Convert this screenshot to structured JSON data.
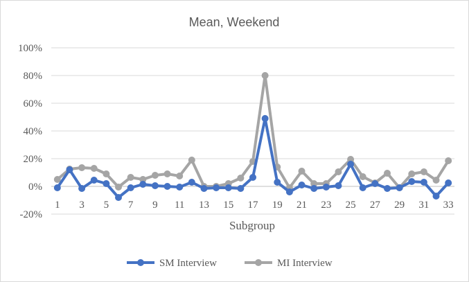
{
  "chart_data": {
    "type": "line",
    "title": "Mean, Weekend",
    "xlabel": "Subgroup",
    "ylabel": "",
    "ylim": [
      -0.2,
      1.0
    ],
    "y_ticks": [
      -0.2,
      0,
      0.2,
      0.4,
      0.6,
      0.8,
      1.0
    ],
    "y_tick_labels": [
      "-20%",
      "0%",
      "20%",
      "40%",
      "60%",
      "80%",
      "100%"
    ],
    "x": [
      1,
      2,
      3,
      4,
      5,
      6,
      7,
      8,
      9,
      10,
      11,
      12,
      13,
      14,
      15,
      16,
      17,
      18,
      19,
      20,
      21,
      22,
      23,
      24,
      25,
      26,
      27,
      28,
      29,
      30,
      31,
      32,
      33
    ],
    "x_tick_labels": [
      "1",
      "3",
      "5",
      "7",
      "9",
      "11",
      "13",
      "15",
      "17",
      "19",
      "21",
      "23",
      "25",
      "27",
      "29",
      "31",
      "33"
    ],
    "grid": true,
    "legend_position": "bottom",
    "series": [
      {
        "name": "SM Interview",
        "color": "#4472c4",
        "values": [
          -0.01,
          0.12,
          -0.015,
          0.045,
          0.02,
          -0.08,
          -0.01,
          0.015,
          0.005,
          0.0,
          -0.005,
          0.03,
          -0.015,
          -0.01,
          -0.01,
          -0.015,
          0.065,
          0.49,
          0.03,
          -0.04,
          0.01,
          -0.015,
          -0.005,
          0.005,
          0.16,
          -0.01,
          0.02,
          -0.015,
          -0.01,
          0.035,
          0.03,
          -0.07,
          0.025
        ]
      },
      {
        "name": "MI Interview",
        "color": "#a5a5a5",
        "values": [
          0.05,
          0.125,
          0.135,
          0.13,
          0.09,
          -0.005,
          0.065,
          0.05,
          0.08,
          0.09,
          0.075,
          0.19,
          0.0,
          0.0,
          0.02,
          0.06,
          0.18,
          0.8,
          0.14,
          -0.01,
          0.11,
          0.02,
          0.02,
          0.105,
          0.195,
          0.07,
          0.025,
          0.095,
          -0.01,
          0.09,
          0.105,
          0.045,
          0.185
        ]
      }
    ]
  }
}
